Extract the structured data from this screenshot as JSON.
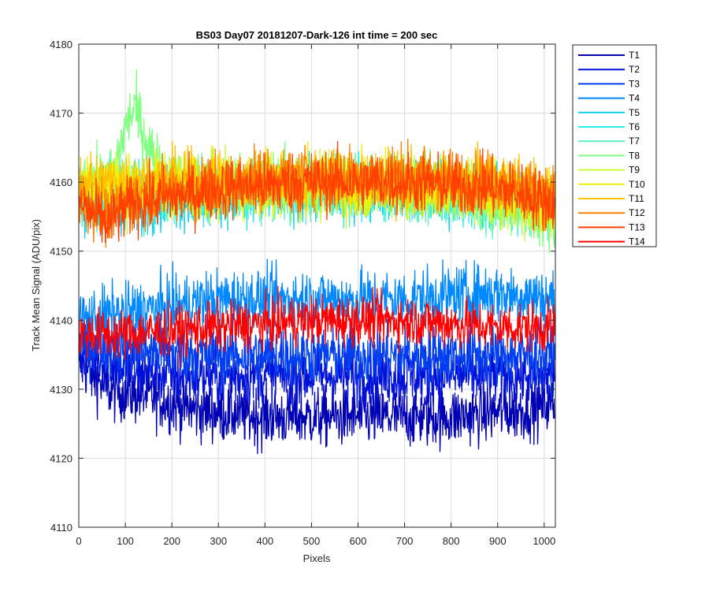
{
  "chart_data": {
    "type": "line",
    "title": "BS03 Day07 20181207-Dark-126 int time = 200 sec",
    "xlabel": "Pixels",
    "ylabel": "Track Mean Signal (ADU/pix)",
    "xlim": [
      0,
      1024
    ],
    "ylim": [
      4110,
      4180
    ],
    "x_ticks": [
      0,
      100,
      200,
      300,
      400,
      500,
      600,
      700,
      800,
      900,
      1000
    ],
    "y_ticks": [
      4110,
      4120,
      4130,
      4140,
      4150,
      4160,
      4170,
      4180
    ],
    "grid": true,
    "legend_position": "outside-top-right",
    "x_start": 0,
    "x_end": 1023,
    "series": [
      {
        "name": "T1",
        "color": "#0000b4",
        "noise": 2.2,
        "level": [
          [
            0,
            4134
          ],
          [
            60,
            4130
          ],
          [
            150,
            4129
          ],
          [
            250,
            4127
          ],
          [
            400,
            4126
          ],
          [
            600,
            4126
          ],
          [
            800,
            4126
          ],
          [
            950,
            4127
          ],
          [
            1023,
            4128
          ]
        ]
      },
      {
        "name": "T2",
        "color": "#0010d8",
        "noise": 2.2,
        "level": [
          [
            0,
            4136
          ],
          [
            100,
            4133
          ],
          [
            200,
            4132
          ],
          [
            400,
            4132
          ],
          [
            600,
            4132
          ],
          [
            800,
            4132
          ],
          [
            1023,
            4132
          ]
        ]
      },
      {
        "name": "T3",
        "color": "#0040f0",
        "noise": 2.2,
        "level": [
          [
            0,
            4137
          ],
          [
            100,
            4136
          ],
          [
            300,
            4135
          ],
          [
            500,
            4135
          ],
          [
            700,
            4135
          ],
          [
            900,
            4135
          ],
          [
            1023,
            4135
          ]
        ]
      },
      {
        "name": "T4",
        "color": "#0088ff",
        "noise": 2.2,
        "level": [
          [
            0,
            4140
          ],
          [
            100,
            4141
          ],
          [
            300,
            4143
          ],
          [
            500,
            4143
          ],
          [
            700,
            4143
          ],
          [
            900,
            4144
          ],
          [
            1023,
            4143
          ]
        ]
      },
      {
        "name": "T5",
        "color": "#10d0f0",
        "noise": 2.2,
        "level": [
          [
            0,
            4158
          ],
          [
            100,
            4157
          ],
          [
            300,
            4158
          ],
          [
            500,
            4159
          ],
          [
            700,
            4159
          ],
          [
            900,
            4158
          ],
          [
            1023,
            4157
          ]
        ]
      },
      {
        "name": "T6",
        "color": "#28f0f0",
        "noise": 2.2,
        "level": [
          [
            0,
            4158
          ],
          [
            100,
            4158
          ],
          [
            300,
            4158
          ],
          [
            500,
            4159
          ],
          [
            700,
            4159
          ],
          [
            900,
            4158
          ],
          [
            1023,
            4156
          ]
        ]
      },
      {
        "name": "T7",
        "color": "#60f0c8",
        "noise": 2.2,
        "level": [
          [
            0,
            4159
          ],
          [
            100,
            4159
          ],
          [
            300,
            4159
          ],
          [
            500,
            4159
          ],
          [
            700,
            4159
          ],
          [
            900,
            4157
          ],
          [
            1023,
            4155
          ]
        ]
      },
      {
        "name": "T8",
        "color": "#80ff80",
        "noise": 2.2,
        "level": [
          [
            0,
            4160
          ],
          [
            70,
            4160
          ],
          [
            100,
            4168
          ],
          [
            120,
            4171
          ],
          [
            140,
            4167
          ],
          [
            165,
            4163
          ],
          [
            200,
            4160
          ],
          [
            500,
            4160
          ],
          [
            800,
            4159
          ],
          [
            950,
            4156
          ],
          [
            1023,
            4154
          ]
        ]
      },
      {
        "name": "T9",
        "color": "#c8ff38",
        "noise": 2.2,
        "level": [
          [
            0,
            4159
          ],
          [
            100,
            4159
          ],
          [
            300,
            4159
          ],
          [
            500,
            4159
          ],
          [
            700,
            4159
          ],
          [
            900,
            4158
          ],
          [
            1023,
            4156
          ]
        ]
      },
      {
        "name": "T10",
        "color": "#f0f000",
        "noise": 2.2,
        "level": [
          [
            0,
            4160
          ],
          [
            100,
            4160
          ],
          [
            300,
            4160
          ],
          [
            500,
            4160
          ],
          [
            700,
            4160
          ],
          [
            900,
            4159
          ],
          [
            1023,
            4157
          ]
        ]
      },
      {
        "name": "T11",
        "color": "#ffc000",
        "noise": 2.2,
        "level": [
          [
            0,
            4160
          ],
          [
            100,
            4160
          ],
          [
            300,
            4160
          ],
          [
            500,
            4160
          ],
          [
            700,
            4160
          ],
          [
            900,
            4160
          ],
          [
            1023,
            4158
          ]
        ]
      },
      {
        "name": "T12",
        "color": "#ff8000",
        "noise": 2.2,
        "level": [
          [
            0,
            4158
          ],
          [
            60,
            4155
          ],
          [
            120,
            4158
          ],
          [
            300,
            4160
          ],
          [
            500,
            4161
          ],
          [
            700,
            4161
          ],
          [
            900,
            4160
          ],
          [
            1023,
            4158
          ]
        ]
      },
      {
        "name": "T13",
        "color": "#ff4000",
        "noise": 2.2,
        "level": [
          [
            0,
            4157
          ],
          [
            60,
            4154
          ],
          [
            120,
            4157
          ],
          [
            300,
            4159
          ],
          [
            500,
            4160
          ],
          [
            700,
            4160
          ],
          [
            900,
            4159
          ],
          [
            1023,
            4157
          ]
        ]
      },
      {
        "name": "T14",
        "color": "#ff0000",
        "noise": 1.8,
        "level": [
          [
            0,
            4138
          ],
          [
            100,
            4138
          ],
          [
            300,
            4139
          ],
          [
            500,
            4140
          ],
          [
            700,
            4140
          ],
          [
            900,
            4139
          ],
          [
            1023,
            4139
          ]
        ]
      }
    ]
  }
}
